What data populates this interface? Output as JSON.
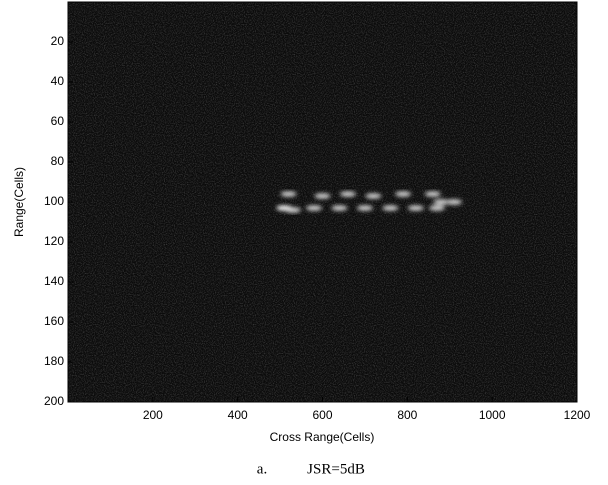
{
  "chart_data": {
    "type": "image",
    "xlabel": "Cross Range(Cells)",
    "ylabel": "Range(Cells)",
    "caption_label": "a.",
    "caption": "JSR=5dB",
    "xlim": [
      0,
      1200
    ],
    "ylim": [
      0,
      200
    ],
    "y_reversed": true,
    "xticks": [
      200,
      400,
      600,
      800,
      1000,
      1200
    ],
    "yticks": [
      20,
      40,
      60,
      80,
      100,
      120,
      140,
      160,
      180,
      200
    ],
    "x": [
      520,
      600,
      660,
      720,
      790,
      860,
      880,
      910,
      510,
      530,
      580,
      640,
      700,
      760,
      820,
      870
    ],
    "y": [
      96,
      97,
      96,
      97,
      96,
      96,
      100,
      100,
      103,
      104,
      103,
      103,
      103,
      103,
      103,
      103
    ]
  }
}
